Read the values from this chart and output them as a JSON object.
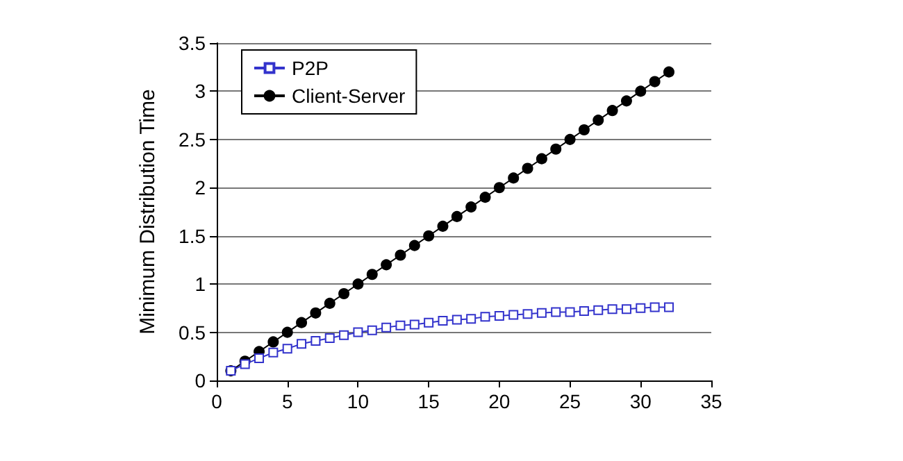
{
  "chart_data": {
    "type": "line",
    "ylabel": "Minimum Distribution Time",
    "x": [
      1,
      2,
      3,
      4,
      5,
      6,
      7,
      8,
      9,
      10,
      11,
      12,
      13,
      14,
      15,
      16,
      17,
      18,
      19,
      20,
      21,
      22,
      23,
      24,
      25,
      26,
      27,
      28,
      29,
      30,
      31,
      32
    ],
    "series": [
      {
        "name": "P2P",
        "color": "#3333cc",
        "marker": "square",
        "values": [
          0.1,
          0.17,
          0.23,
          0.29,
          0.33,
          0.38,
          0.41,
          0.44,
          0.47,
          0.5,
          0.52,
          0.55,
          0.57,
          0.58,
          0.6,
          0.62,
          0.63,
          0.64,
          0.66,
          0.67,
          0.68,
          0.69,
          0.7,
          0.71,
          0.71,
          0.72,
          0.73,
          0.74,
          0.74,
          0.75,
          0.76,
          0.76
        ]
      },
      {
        "name": "Client-Server",
        "color": "#000000",
        "marker": "circle",
        "values": [
          0.1,
          0.2,
          0.3,
          0.4,
          0.5,
          0.6,
          0.7,
          0.8,
          0.9,
          1.0,
          1.1,
          1.2,
          1.3,
          1.4,
          1.5,
          1.6,
          1.7,
          1.8,
          1.9,
          2.0,
          2.1,
          2.2,
          2.3,
          2.4,
          2.5,
          2.6,
          2.7,
          2.8,
          2.9,
          3.0,
          3.1,
          3.2
        ]
      }
    ],
    "xlim": [
      0,
      35
    ],
    "xticks": [
      0,
      5,
      10,
      15,
      20,
      25,
      30,
      35
    ],
    "ylim": [
      0,
      3.5
    ],
    "yticks": [
      0,
      0.5,
      1,
      1.5,
      2,
      2.5,
      3,
      3.5
    ],
    "grid": "y",
    "legend": "top left",
    "line_style": "solid"
  }
}
